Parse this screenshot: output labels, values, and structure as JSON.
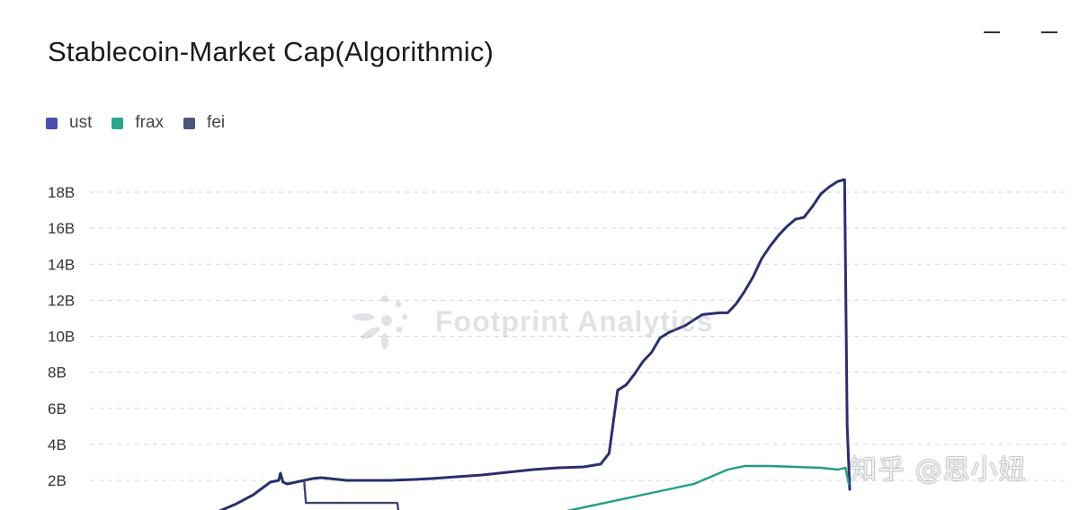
{
  "window": {
    "title": "Stablecoin-Market Cap(Algorithmic)",
    "controls": [
      {
        "name": "minimize-button"
      },
      {
        "name": "maximize-button"
      }
    ]
  },
  "watermarks": {
    "brand": "Footprint Analytics",
    "author": "知乎 @思小妞"
  },
  "colors": {
    "ust": "#2b2f6e",
    "frax": "#1f9d85",
    "fei": "#3e4669",
    "grid": "#d8d8d8"
  },
  "chart_data": {
    "type": "line",
    "title": "Stablecoin-Market Cap(Algorithmic)",
    "xlabel": "",
    "ylabel": "",
    "ylim": [
      0,
      19000000000
    ],
    "y_ticks": [
      "2B",
      "4B",
      "6B",
      "8B",
      "10B",
      "12B",
      "14B",
      "16B",
      "18B"
    ],
    "y_tick_values": [
      2000000000,
      4000000000,
      6000000000,
      8000000000,
      10000000000,
      12000000000,
      14000000000,
      16000000000,
      18000000000
    ],
    "grid": "horizontal-dashed",
    "legend_position": "top-left",
    "x_index_range": [
      0,
      100
    ],
    "series": [
      {
        "name": "ust",
        "color": "#2b2f6e",
        "points": [
          [
            0,
            0
          ],
          [
            3,
            0.05
          ],
          [
            5,
            0.3
          ],
          [
            7,
            0.7
          ],
          [
            9,
            1.2
          ],
          [
            10,
            1.55
          ],
          [
            11,
            1.9
          ],
          [
            12,
            2.0
          ],
          [
            12.2,
            2.4
          ],
          [
            12.5,
            1.9
          ],
          [
            13,
            1.8
          ],
          [
            14,
            1.9
          ],
          [
            15,
            2.0
          ],
          [
            16,
            2.1
          ],
          [
            17,
            2.15
          ],
          [
            18,
            2.1
          ],
          [
            19,
            2.05
          ],
          [
            20,
            2.0
          ],
          [
            22,
            2.0
          ],
          [
            25,
            2.0
          ],
          [
            28,
            2.05
          ],
          [
            30,
            2.1
          ],
          [
            33,
            2.2
          ],
          [
            36,
            2.3
          ],
          [
            39,
            2.45
          ],
          [
            42,
            2.6
          ],
          [
            45,
            2.7
          ],
          [
            48,
            2.75
          ],
          [
            50,
            2.9
          ],
          [
            51,
            3.5
          ],
          [
            52,
            7.0
          ],
          [
            53,
            7.3
          ],
          [
            54,
            7.9
          ],
          [
            55,
            8.6
          ],
          [
            56,
            9.1
          ],
          [
            57,
            9.9
          ],
          [
            58,
            10.2
          ],
          [
            59,
            10.4
          ],
          [
            60,
            10.6
          ],
          [
            61,
            10.9
          ],
          [
            62,
            11.2
          ],
          [
            64,
            11.3
          ],
          [
            65,
            11.3
          ],
          [
            66,
            11.8
          ],
          [
            67,
            12.5
          ],
          [
            68,
            13.3
          ],
          [
            69,
            14.3
          ],
          [
            70,
            15.0
          ],
          [
            71,
            15.6
          ],
          [
            72,
            16.1
          ],
          [
            73,
            16.5
          ],
          [
            74,
            16.6
          ],
          [
            75,
            17.2
          ],
          [
            76,
            17.9
          ],
          [
            77,
            18.3
          ],
          [
            78,
            18.6
          ],
          [
            78.8,
            18.7
          ],
          [
            79.1,
            5.0
          ],
          [
            79.4,
            1.5
          ]
        ]
      },
      {
        "name": "frax",
        "color": "#1f9d85",
        "points": [
          [
            38,
            0
          ],
          [
            42,
            0.05
          ],
          [
            45,
            0.2
          ],
          [
            48,
            0.5
          ],
          [
            50,
            0.7
          ],
          [
            52,
            0.9
          ],
          [
            55,
            1.2
          ],
          [
            58,
            1.5
          ],
          [
            61,
            1.8
          ],
          [
            63,
            2.2
          ],
          [
            65,
            2.6
          ],
          [
            67,
            2.8
          ],
          [
            70,
            2.8
          ],
          [
            73,
            2.75
          ],
          [
            76,
            2.7
          ],
          [
            78,
            2.6
          ],
          [
            78.9,
            2.7
          ],
          [
            79.3,
            1.8
          ]
        ]
      },
      {
        "name": "fei",
        "color": "#3e4669",
        "points": [
          [
            15,
            1.95
          ],
          [
            15.2,
            0.75
          ],
          [
            20,
            0.75
          ],
          [
            26,
            0.75
          ],
          [
            26.2,
            0.05
          ],
          [
            35,
            0.05
          ],
          [
            45,
            0.1
          ],
          [
            50,
            0.15
          ],
          [
            55,
            0.25
          ],
          [
            60,
            0.2
          ],
          [
            64,
            0.2
          ],
          [
            65,
            0.15
          ],
          [
            70,
            0.15
          ],
          [
            75,
            0.1
          ],
          [
            78,
            0.1
          ],
          [
            79.5,
            0.1
          ]
        ]
      }
    ]
  }
}
